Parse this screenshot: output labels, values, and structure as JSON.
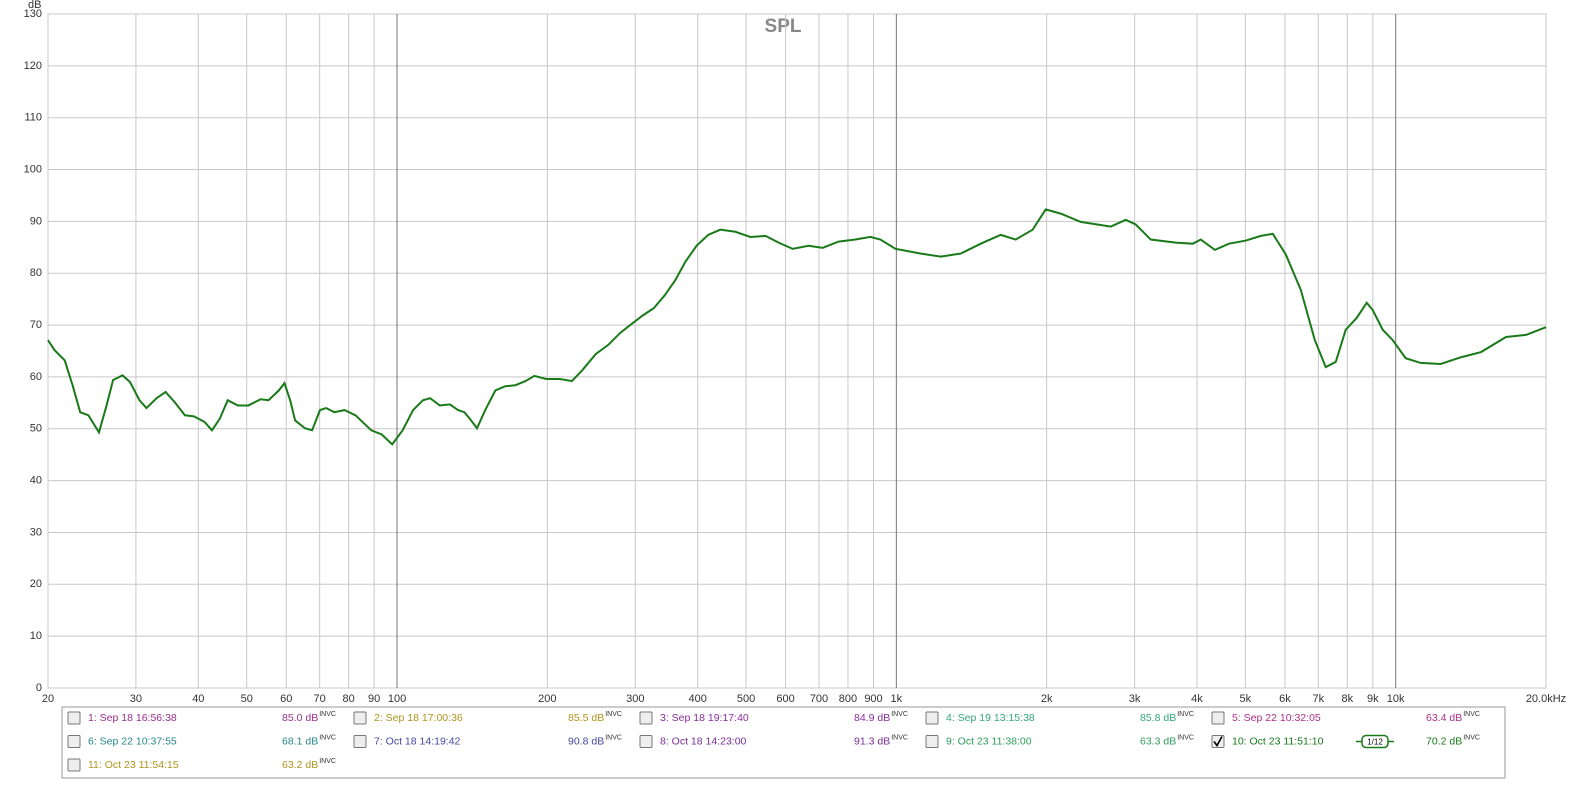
{
  "chart_data": {
    "type": "line",
    "title": "SPL",
    "y_label": "dB",
    "x_log": true,
    "grid": true,
    "xlim": [
      20,
      20000
    ],
    "ylim": [
      0,
      130
    ],
    "xticks": [
      20,
      30,
      40,
      50,
      60,
      70,
      80,
      90,
      100,
      200,
      300,
      400,
      500,
      600,
      700,
      800,
      900,
      {
        "value": 1000,
        "label": "1k"
      },
      {
        "value": 2000,
        "label": "2k"
      },
      {
        "value": 3000,
        "label": "3k"
      },
      {
        "value": 4000,
        "label": "4k"
      },
      {
        "value": 5000,
        "label": "5k"
      },
      {
        "value": 6000,
        "label": "6k"
      },
      {
        "value": 7000,
        "label": "7k"
      },
      {
        "value": 8000,
        "label": "8k"
      },
      {
        "value": 9000,
        "label": "9k"
      },
      {
        "value": 10000,
        "label": "10k"
      },
      {
        "value": 20000,
        "label": "20.0kHz"
      }
    ],
    "yticks": [
      0,
      10,
      20,
      30,
      40,
      50,
      60,
      70,
      80,
      90,
      100,
      110,
      120,
      130
    ],
    "series": [
      {
        "color": "#1a7a1a",
        "x": [
          20,
          20.6,
          21.6,
          22.4,
          23.2,
          24.1,
          25.3,
          26.2,
          27,
          28.2,
          29.2,
          30.5,
          31.5,
          33,
          34.4,
          35.9,
          37.6,
          39.2,
          41.2,
          42.6,
          44.2,
          45.8,
          48,
          50.4,
          53.3,
          55.3,
          58,
          59.5,
          61.1,
          62.5,
          65.4,
          67.6,
          70.1,
          72.1,
          74.9,
          78.5,
          82.6,
          88.8,
          93.2,
          97.8,
          102.6,
          107.7,
          112.7,
          116.5,
          121.8,
          127.6,
          132.5,
          136.4,
          139.7,
          144.6,
          150.2,
          157.4,
          164.7,
          172.6,
          180.8,
          188.4,
          199,
          212,
          224,
          235,
          250,
          265,
          280,
          293,
          310,
          327,
          344,
          361,
          378,
          398,
          420,
          444,
          476,
          510,
          547,
          581,
          620,
          667,
          712,
          766,
          828,
          887,
          929,
          996,
          1117,
          1227,
          1346,
          1476,
          1618,
          1734,
          1875,
          1991,
          2134,
          2340,
          2688,
          2880,
          3016,
          3232,
          3625,
          3925,
          4070,
          4345,
          4635,
          5012,
          5370,
          5675,
          6026,
          6456,
          6887,
          7244,
          7586,
          7943,
          8356,
          8750,
          8995,
          9419,
          9863,
          10471,
          11220,
          12303,
          13521,
          14825,
          16634,
          18239,
          20000
        ],
        "values": [
          67.1,
          65.2,
          63.2,
          58.4,
          53.2,
          52.6,
          49.3,
          54.5,
          59.4,
          60.3,
          59.0,
          55.5,
          54.0,
          55.9,
          57.1,
          55.1,
          52.6,
          52.4,
          51.3,
          49.7,
          52.0,
          55.5,
          54.5,
          54.5,
          55.7,
          55.5,
          57.4,
          58.8,
          55.5,
          51.6,
          50.1,
          49.7,
          53.6,
          54.0,
          53.2,
          53.6,
          52.6,
          49.7,
          48.9,
          47.0,
          49.7,
          53.6,
          55.5,
          55.9,
          54.5,
          54.7,
          53.6,
          53.2,
          52.0,
          50.1,
          53.6,
          57.4,
          58.2,
          58.4,
          59.2,
          60.2,
          59.6,
          59.6,
          59.2,
          61.3,
          64.4,
          66.2,
          68.5,
          70.0,
          71.8,
          73.3,
          75.8,
          78.7,
          82.2,
          85.3,
          87.4,
          88.4,
          88.0,
          87.0,
          87.2,
          85.9,
          84.7,
          85.3,
          84.9,
          86.1,
          86.5,
          87.0,
          86.5,
          84.7,
          83.8,
          83.2,
          83.8,
          85.7,
          87.4,
          86.5,
          88.4,
          92.3,
          91.5,
          89.9,
          89.0,
          90.3,
          89.4,
          86.5,
          85.9,
          85.7,
          86.5,
          84.5,
          85.7,
          86.3,
          87.2,
          87.6,
          83.6,
          76.8,
          67.1,
          61.9,
          62.9,
          69.1,
          71.4,
          74.3,
          72.9,
          69.1,
          67.1,
          63.6,
          62.7,
          62.5,
          63.8,
          64.8,
          67.7,
          68.1,
          69.6
        ]
      }
    ],
    "legend_entries": [
      {
        "name": "1: Sep 18 16:56:38",
        "color": "#9a2f8e",
        "level": "85.0 dB",
        "tag": "INVC",
        "checked": false
      },
      {
        "name": "2: Sep 18 17:00:36",
        "color": "#b0941c",
        "level": "85.5 dB",
        "tag": "INVC",
        "checked": false
      },
      {
        "name": "3: Sep 18 19:17:40",
        "color": "#8a2c9c",
        "level": "84.9 dB",
        "tag": "INVC",
        "checked": false
      },
      {
        "name": "4: Sep 19 13:15:38",
        "color": "#34a878",
        "level": "85.8 dB",
        "tag": "INVC",
        "checked": false
      },
      {
        "name": "5: Sep 22 10:32:05",
        "color": "#ad2e8a",
        "level": "63.4 dB",
        "tag": "INVC",
        "checked": false
      },
      {
        "name": "6: Sep 22 10:37:55",
        "color": "#27878c",
        "level": "68.1 dB",
        "tag": "INVC",
        "checked": false
      },
      {
        "name": "7: Oct 18 14:19:42",
        "color": "#4646a0",
        "level": "90.8 dB",
        "tag": "INVC",
        "checked": false
      },
      {
        "name": "8: Oct 18 14:23:00",
        "color": "#7a2c98",
        "level": "91.3 dB",
        "tag": "INVC",
        "checked": false
      },
      {
        "name": "9: Oct 23 11:38:00",
        "color": "#2e9e5a",
        "level": "63.3 dB",
        "tag": "INVC",
        "checked": false
      },
      {
        "name": "10: Oct 23 11:51:10",
        "color": "#1a7a1a",
        "level": "70.2 dB",
        "tag": "INVC",
        "checked": true,
        "smoothing": "1/12"
      },
      {
        "name": "11: Oct 23 11:54:15",
        "color": "#b0941c",
        "level": "63.2 dB",
        "tag": "INVC",
        "checked": false
      }
    ]
  }
}
